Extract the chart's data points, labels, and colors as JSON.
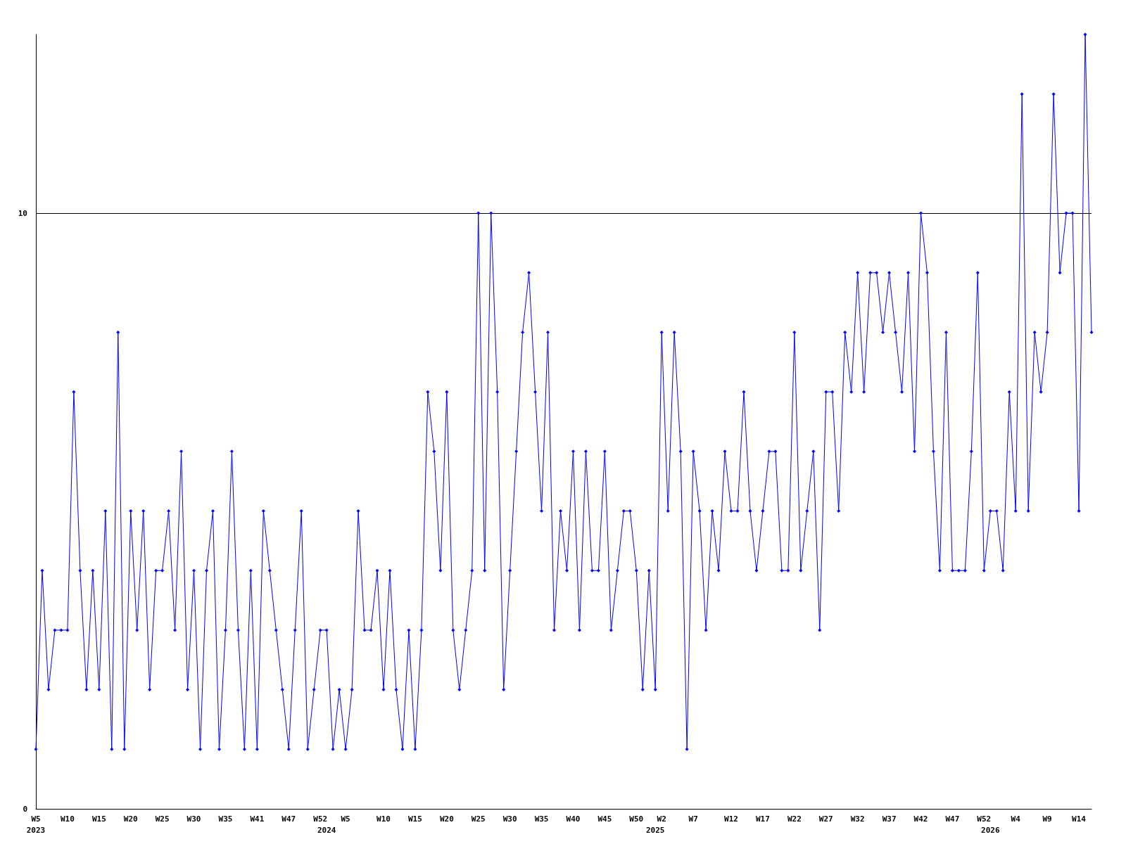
{
  "chart_data": {
    "type": "line",
    "categories": [
      "W5\n2023",
      null,
      null,
      null,
      null,
      "W10",
      null,
      null,
      null,
      null,
      "W15",
      null,
      null,
      null,
      null,
      "W20",
      null,
      null,
      null,
      null,
      "W25",
      null,
      null,
      null,
      null,
      "W30",
      null,
      null,
      null,
      null,
      "W35",
      null,
      null,
      null,
      null,
      "W41",
      null,
      null,
      null,
      null,
      "W47",
      null,
      null,
      null,
      null,
      "W52",
      "\n2024",
      null,
      null,
      "W5",
      null,
      null,
      null,
      null,
      null,
      "W10",
      null,
      null,
      null,
      null,
      "W15",
      null,
      null,
      null,
      null,
      "W20",
      null,
      null,
      null,
      null,
      "W25",
      null,
      null,
      null,
      null,
      "W30",
      null,
      null,
      null,
      null,
      "W35",
      null,
      null,
      null,
      null,
      "W40",
      null,
      null,
      null,
      null,
      "W45",
      null,
      null,
      null,
      null,
      "W50",
      null,
      null,
      "\n2025",
      "W2",
      null,
      null,
      null,
      null,
      "W7",
      null,
      null,
      null,
      null,
      null,
      "W12",
      null,
      null,
      null,
      null,
      "W17",
      null,
      null,
      null,
      null,
      "W22",
      null,
      null,
      null,
      null,
      "W27",
      null,
      null,
      null,
      null,
      "W32",
      null,
      null,
      null,
      null,
      "W37",
      null,
      null,
      null,
      null,
      "W42",
      null,
      null,
      null,
      null,
      "W47",
      null,
      null,
      null,
      null,
      "W52",
      "\n2026",
      null,
      null,
      null,
      "W4",
      null,
      null,
      null,
      null,
      "W9",
      null,
      null,
      null,
      null,
      "W14",
      null,
      null
    ],
    "series": [
      {
        "color": "#0000ff",
        "values": [
          1,
          4,
          2,
          3,
          3,
          3,
          7,
          4,
          2,
          4,
          2,
          5,
          1,
          8,
          1,
          5,
          3,
          5,
          2,
          4,
          4,
          5,
          3,
          6,
          2,
          4,
          1,
          4,
          5,
          1,
          3,
          6,
          3,
          1,
          4,
          1,
          5,
          4,
          3,
          2,
          1,
          3,
          5,
          1,
          2,
          3,
          3,
          1,
          2,
          1,
          2,
          5,
          3,
          3,
          4,
          2,
          4,
          2,
          1,
          3,
          1,
          3,
          7,
          6,
          4,
          7,
          3,
          2,
          3,
          4,
          10,
          4,
          10,
          7,
          2,
          4,
          6,
          8,
          9,
          7,
          5,
          8,
          3,
          5,
          4,
          6,
          3,
          6,
          4,
          4,
          6,
          3,
          4,
          5,
          5,
          4,
          2,
          4,
          2,
          8,
          5,
          8,
          6,
          1,
          6,
          5,
          3,
          5,
          4,
          6,
          5,
          5,
          7,
          5,
          4,
          5,
          6,
          6,
          4,
          4,
          8,
          4,
          5,
          6,
          3,
          7,
          7,
          5,
          8,
          7,
          9,
          7,
          9,
          9,
          8,
          9,
          8,
          7,
          9,
          6,
          10,
          9,
          6,
          4,
          8,
          4,
          4,
          4,
          6,
          9,
          4,
          5,
          5,
          4,
          7,
          5,
          12,
          5,
          8,
          7,
          8,
          12,
          9,
          10,
          10,
          5,
          13,
          8
        ]
      }
    ],
    "ylim": [
      0,
      13
    ],
    "yticks": [
      0,
      10
    ],
    "grid": "y",
    "marker": "diamond",
    "line_style": "solid"
  }
}
